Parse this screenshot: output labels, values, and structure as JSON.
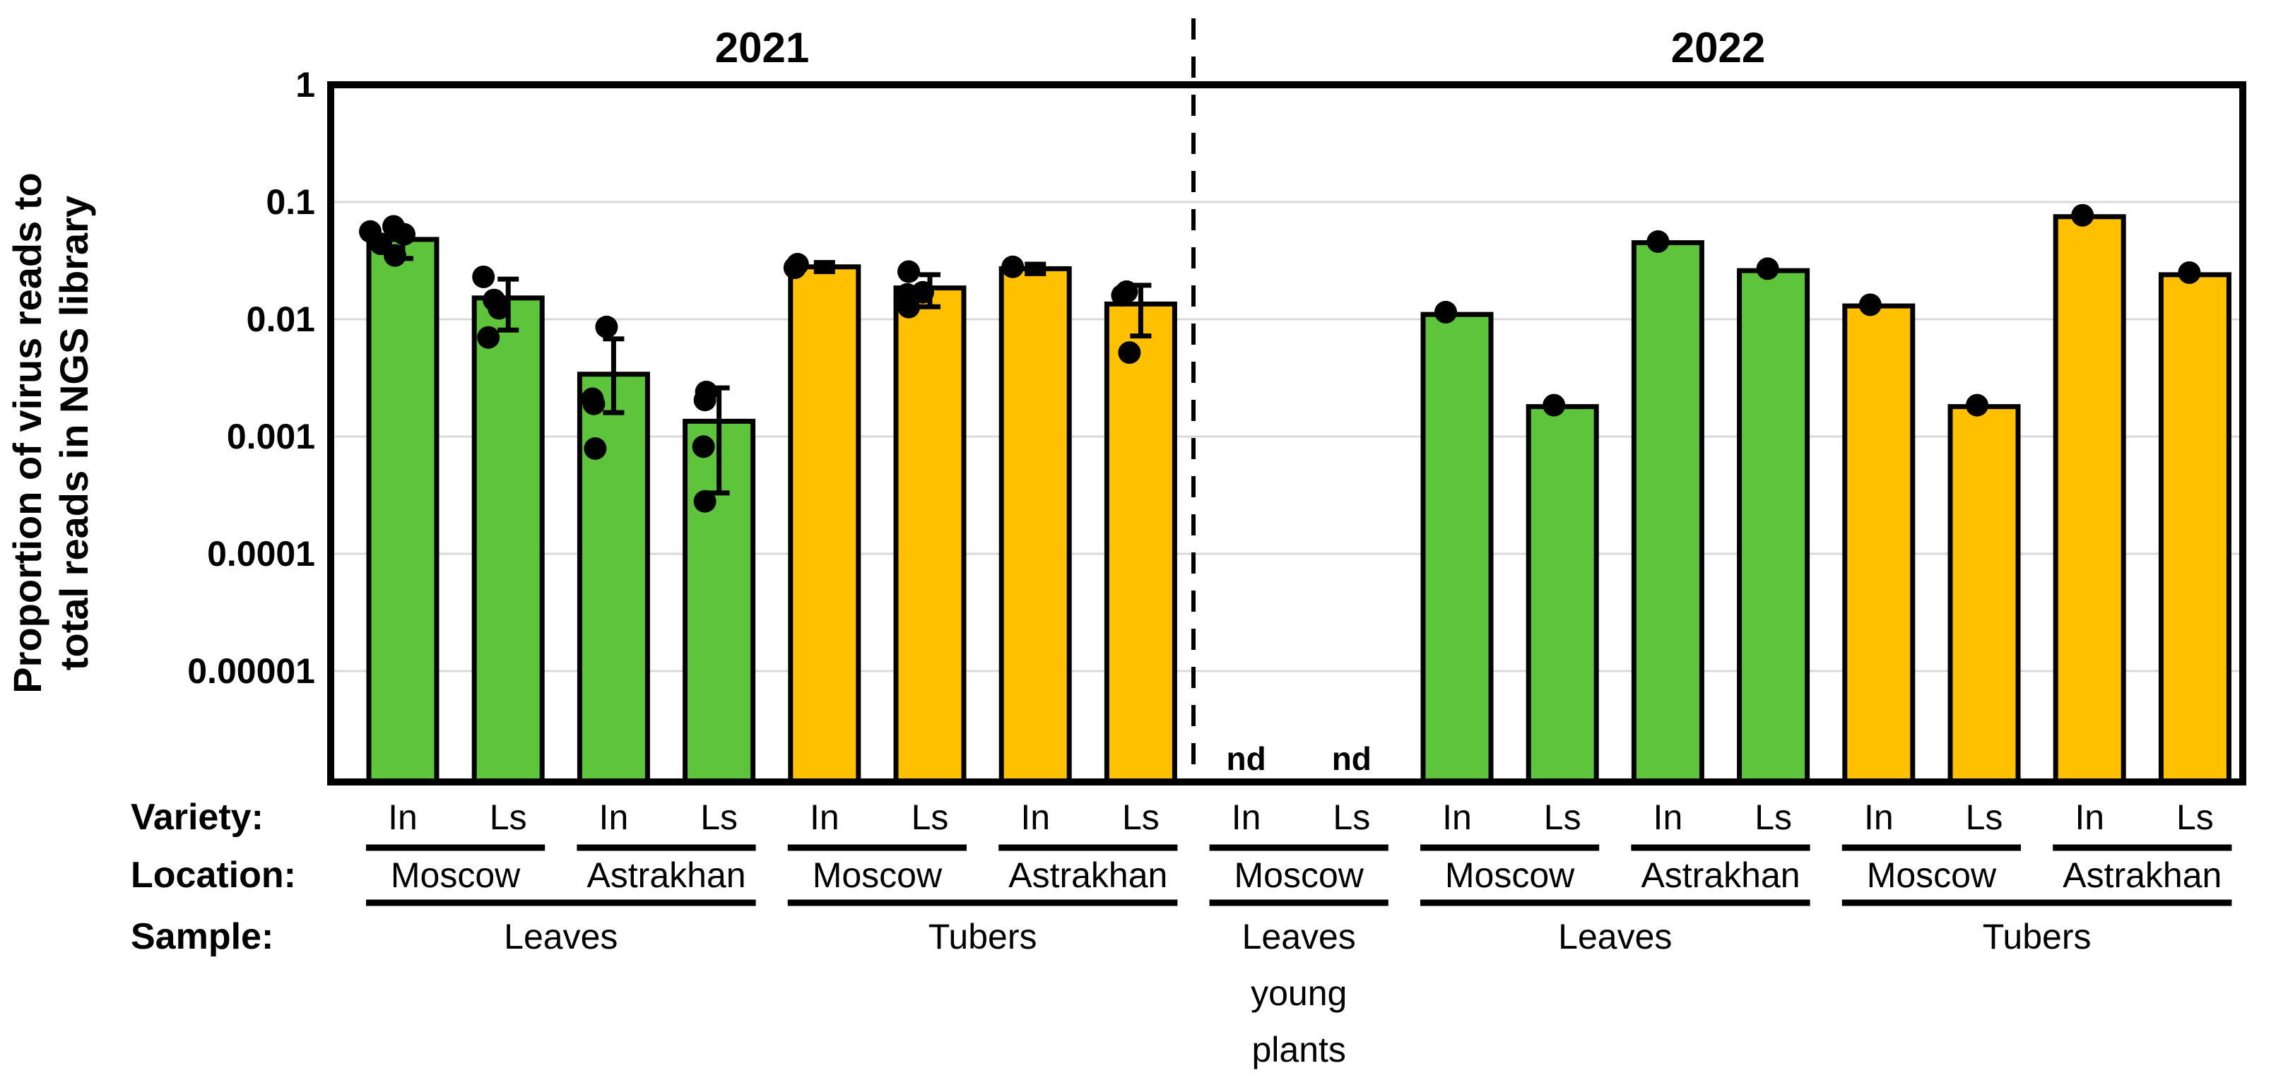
{
  "chart_data": {
    "type": "bar",
    "y_scale": "log10",
    "ylabel": "Proportion of virus reads to total reads in NGS library",
    "ylim": [
      1e-06,
      1
    ],
    "grid": true,
    "legend_position": "none",
    "y_axis": {
      "label_lines": [
        "Proportion of virus reads to",
        "total reads in NGS library"
      ],
      "ticks": [
        "1",
        "0.1",
        "0.01",
        "0.001",
        "0.0001",
        "0.00001"
      ],
      "tick_values": [
        1,
        0.1,
        0.01,
        0.001,
        0.0001,
        1e-05
      ]
    },
    "sections": [
      {
        "year": "2021"
      },
      {
        "year": "2022"
      }
    ],
    "nd_label": "nd",
    "row_labels": {
      "variety": "Variety:",
      "location": "Location:",
      "sample": "Sample:"
    },
    "colors": {
      "leaves": "#5EC43C",
      "tubers": "#FFC000",
      "bar_border": "#000000",
      "dot": "#000000",
      "gridline": "#D9D9D9",
      "frame": "#000000",
      "text": "#000000"
    },
    "bars": [
      {
        "year": "2021",
        "sample": "Leaves",
        "location": "Moscow",
        "variety": "In",
        "color_key": "leaves",
        "value": 0.048,
        "error_low": 0.033,
        "error_high": 0.058,
        "nd": false,
        "points": [
          {
            "v": 0.062,
            "dx": -13
          },
          {
            "v": 0.056,
            "dx": -46
          },
          {
            "v": 0.053,
            "dx": 2
          },
          {
            "v": 0.044,
            "dx": -31
          },
          {
            "v": 0.035,
            "dx": -11
          }
        ]
      },
      {
        "year": "2021",
        "sample": "Leaves",
        "location": "Moscow",
        "variety": "Ls",
        "color_key": "leaves",
        "value": 0.0152,
        "error_low": 0.0081,
        "error_high": 0.022,
        "nd": false,
        "points": [
          {
            "v": 0.023,
            "dx": -35
          },
          {
            "v": 0.0146,
            "dx": -20
          },
          {
            "v": 0.0124,
            "dx": -13
          },
          {
            "v": 0.007,
            "dx": -28
          }
        ]
      },
      {
        "year": "2021",
        "sample": "Leaves",
        "location": "Astrakhan",
        "variety": "In",
        "color_key": "leaves",
        "value": 0.0034,
        "error_low": 0.0016,
        "error_high": 0.0068,
        "nd": false,
        "points": [
          {
            "v": 0.0086,
            "dx": -10
          },
          {
            "v": 0.0021,
            "dx": -30
          },
          {
            "v": 0.0019,
            "dx": -28
          },
          {
            "v": 0.00079,
            "dx": -26
          }
        ]
      },
      {
        "year": "2021",
        "sample": "Leaves",
        "location": "Astrakhan",
        "variety": "Ls",
        "color_key": "leaves",
        "value": 0.00135,
        "error_low": 0.00033,
        "error_high": 0.0026,
        "nd": false,
        "points": [
          {
            "v": 0.0024,
            "dx": -18
          },
          {
            "v": 0.00205,
            "dx": -20
          },
          {
            "v": 0.00082,
            "dx": -22
          },
          {
            "v": 0.00028,
            "dx": -20
          }
        ]
      },
      {
        "year": "2021",
        "sample": "Tubers",
        "location": "Moscow",
        "variety": "In",
        "color_key": "tubers",
        "value": 0.028,
        "error_low": 0.0255,
        "error_high": 0.0305,
        "nd": false,
        "points": [
          {
            "v": 0.0295,
            "dx": -38
          },
          {
            "v": 0.0275,
            "dx": -42
          }
        ]
      },
      {
        "year": "2021",
        "sample": "Tubers",
        "location": "Moscow",
        "variety": "Ls",
        "color_key": "tubers",
        "value": 0.0185,
        "error_low": 0.0128,
        "error_high": 0.024,
        "nd": false,
        "points": [
          {
            "v": 0.0255,
            "dx": -30
          },
          {
            "v": 0.017,
            "dx": -10
          },
          {
            "v": 0.0163,
            "dx": -32
          },
          {
            "v": 0.0127,
            "dx": -30
          }
        ]
      },
      {
        "year": "2021",
        "sample": "Tubers",
        "location": "Astrakhan",
        "variety": "In",
        "color_key": "tubers",
        "value": 0.027,
        "error_low": 0.0245,
        "error_high": 0.0295,
        "nd": false,
        "points": [
          {
            "v": 0.028,
            "dx": -32
          }
        ]
      },
      {
        "year": "2021",
        "sample": "Tubers",
        "location": "Astrakhan",
        "variety": "Ls",
        "color_key": "tubers",
        "value": 0.0135,
        "error_low": 0.0072,
        "error_high": 0.0195,
        "nd": false,
        "points": [
          {
            "v": 0.0172,
            "dx": -20
          },
          {
            "v": 0.016,
            "dx": -26
          },
          {
            "v": 0.0052,
            "dx": -16
          }
        ]
      },
      {
        "year": "2022",
        "sample": "Leaves young plants",
        "location": "Moscow",
        "variety": "In",
        "color_key": null,
        "value": null,
        "error_low": null,
        "error_high": null,
        "nd": true,
        "points": []
      },
      {
        "year": "2022",
        "sample": "Leaves young plants",
        "location": "Moscow",
        "variety": "Ls",
        "color_key": null,
        "value": null,
        "error_low": null,
        "error_high": null,
        "nd": true,
        "points": []
      },
      {
        "year": "2022",
        "sample": "Leaves",
        "location": "Moscow",
        "variety": "In",
        "color_key": "leaves",
        "value": 0.011,
        "error_low": null,
        "error_high": null,
        "nd": false,
        "points": [
          {
            "v": 0.0115,
            "dx": -16
          }
        ]
      },
      {
        "year": "2022",
        "sample": "Leaves",
        "location": "Moscow",
        "variety": "Ls",
        "color_key": "leaves",
        "value": 0.0018,
        "error_low": null,
        "error_high": null,
        "nd": false,
        "points": [
          {
            "v": 0.00185,
            "dx": -12
          }
        ]
      },
      {
        "year": "2022",
        "sample": "Leaves",
        "location": "Astrakhan",
        "variety": "In",
        "color_key": "leaves",
        "value": 0.045,
        "error_low": null,
        "error_high": null,
        "nd": false,
        "points": [
          {
            "v": 0.046,
            "dx": -14
          }
        ]
      },
      {
        "year": "2022",
        "sample": "Leaves",
        "location": "Astrakhan",
        "variety": "Ls",
        "color_key": "leaves",
        "value": 0.026,
        "error_low": null,
        "error_high": null,
        "nd": false,
        "points": [
          {
            "v": 0.027,
            "dx": -8
          }
        ]
      },
      {
        "year": "2022",
        "sample": "Tubers",
        "location": "Moscow",
        "variety": "In",
        "color_key": "tubers",
        "value": 0.013,
        "error_low": null,
        "error_high": null,
        "nd": false,
        "points": [
          {
            "v": 0.0133,
            "dx": -12
          }
        ]
      },
      {
        "year": "2022",
        "sample": "Tubers",
        "location": "Moscow",
        "variety": "Ls",
        "color_key": "tubers",
        "value": 0.0018,
        "error_low": null,
        "error_high": null,
        "nd": false,
        "points": [
          {
            "v": 0.00185,
            "dx": -10
          }
        ]
      },
      {
        "year": "2022",
        "sample": "Tubers",
        "location": "Astrakhan",
        "variety": "In",
        "color_key": "tubers",
        "value": 0.075,
        "error_low": null,
        "error_high": null,
        "nd": false,
        "points": [
          {
            "v": 0.077,
            "dx": -10
          }
        ]
      },
      {
        "year": "2022",
        "sample": "Tubers",
        "location": "Astrakhan",
        "variety": "Ls",
        "color_key": "tubers",
        "value": 0.024,
        "error_low": null,
        "error_high": null,
        "nd": false,
        "points": [
          {
            "v": 0.025,
            "dx": -8
          }
        ]
      }
    ],
    "location_groups": [
      {
        "bar_indices": [
          0,
          1
        ],
        "label": "Moscow"
      },
      {
        "bar_indices": [
          2,
          3
        ],
        "label": "Astrakhan"
      },
      {
        "bar_indices": [
          4,
          5
        ],
        "label": "Moscow"
      },
      {
        "bar_indices": [
          6,
          7
        ],
        "label": "Astrakhan"
      },
      {
        "bar_indices": [
          8,
          9
        ],
        "label": "Moscow"
      },
      {
        "bar_indices": [
          10,
          11
        ],
        "label": "Moscow"
      },
      {
        "bar_indices": [
          12,
          13
        ],
        "label": "Astrakhan"
      },
      {
        "bar_indices": [
          14,
          15
        ],
        "label": "Moscow"
      },
      {
        "bar_indices": [
          16,
          17
        ],
        "label": "Astrakhan"
      }
    ],
    "sample_groups": [
      {
        "bar_indices": [
          0,
          3
        ],
        "label_lines": [
          "Leaves"
        ]
      },
      {
        "bar_indices": [
          4,
          7
        ],
        "label_lines": [
          "Tubers"
        ]
      },
      {
        "bar_indices": [
          8,
          9
        ],
        "label_lines": [
          "Leaves",
          "young",
          "plants"
        ]
      },
      {
        "bar_indices": [
          10,
          13
        ],
        "label_lines": [
          "Leaves"
        ]
      },
      {
        "bar_indices": [
          14,
          17
        ],
        "label_lines": [
          "Tubers"
        ]
      }
    ]
  }
}
